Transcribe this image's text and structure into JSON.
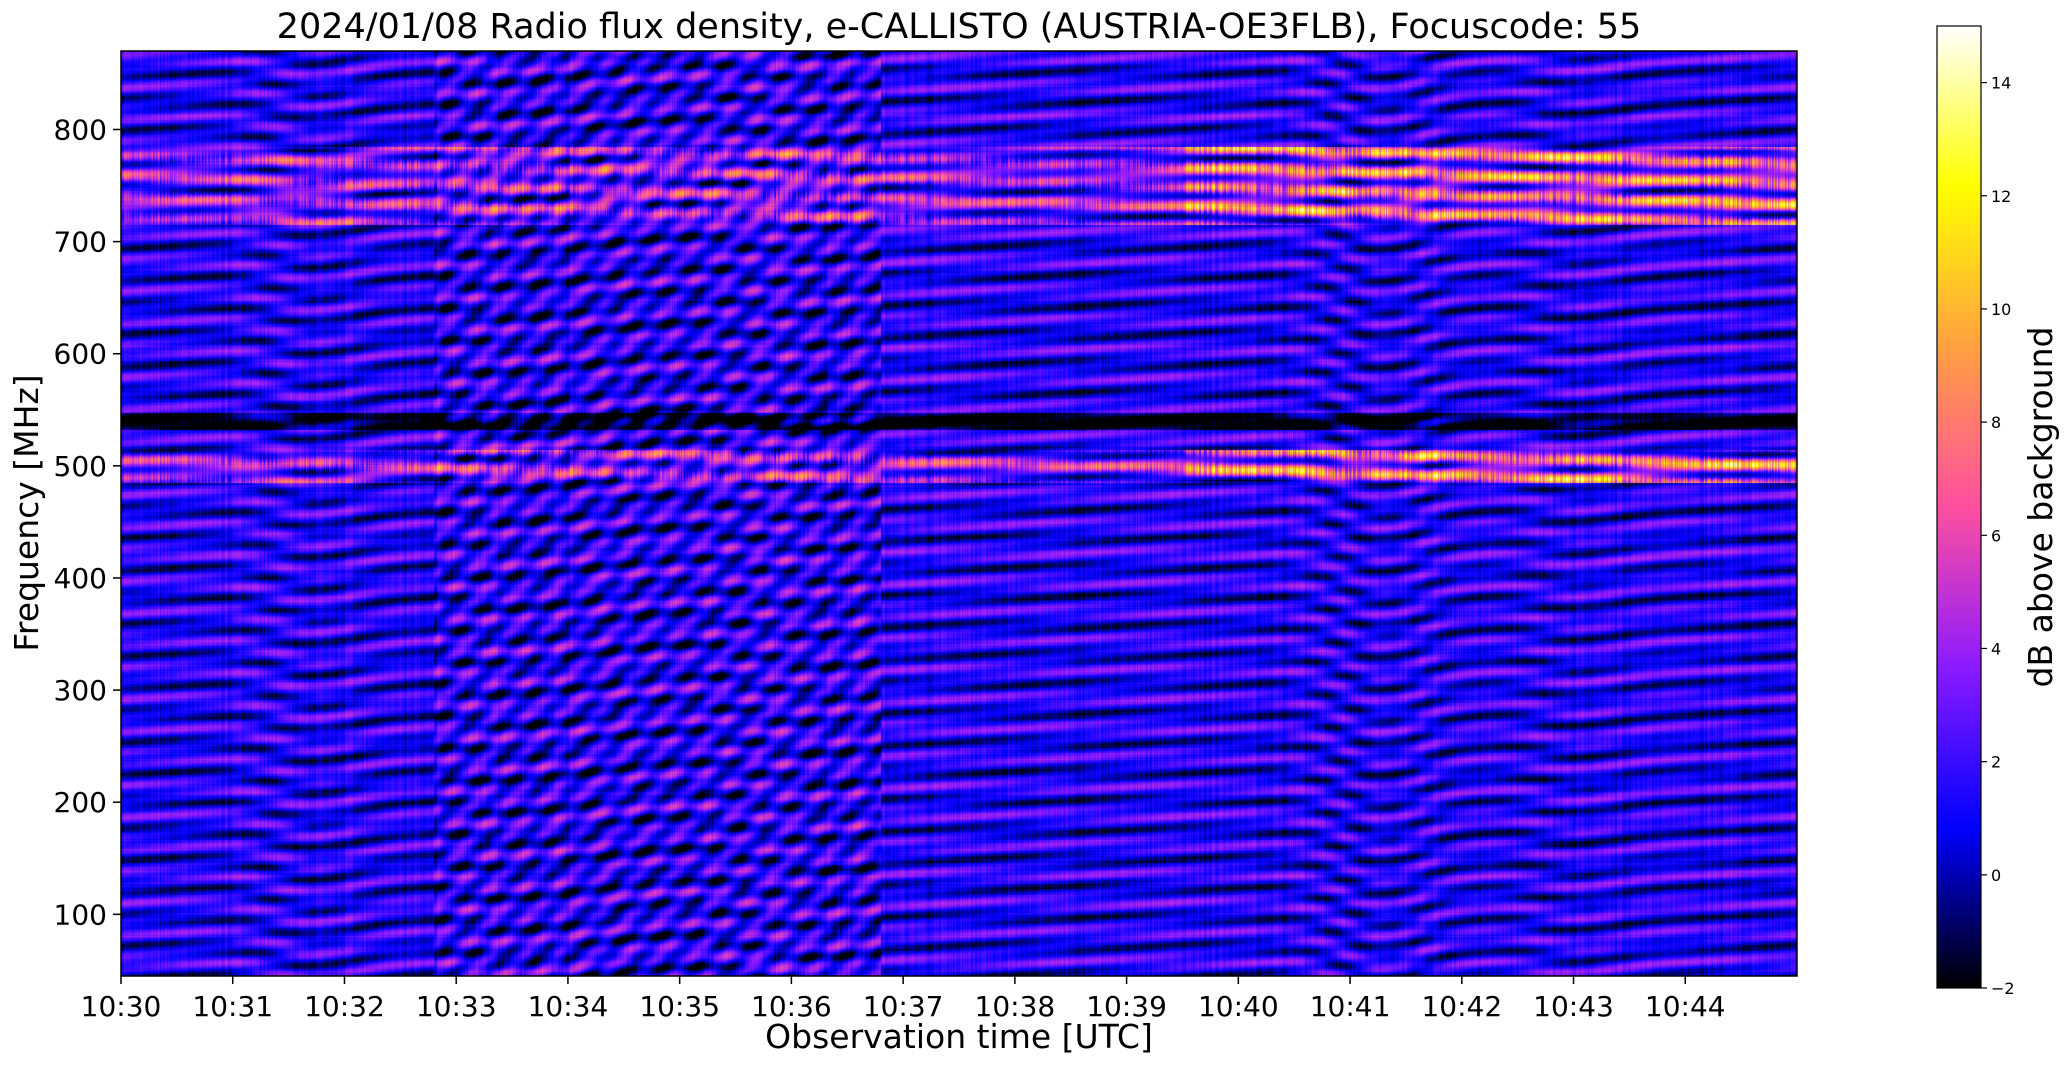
{
  "chart_data": {
    "type": "heatmap",
    "title": "2024/01/08  Radio flux density, e-CALLISTO (AUSTRIA-OE3FLB), Focuscode: 55",
    "xlabel": "Observation time [UTC]",
    "ylabel": "Frequency [MHz]",
    "x_ticks": [
      "10:30",
      "10:31",
      "10:32",
      "10:33",
      "10:34",
      "10:35",
      "10:36",
      "10:37",
      "10:38",
      "10:39",
      "10:40",
      "10:41",
      "10:42",
      "10:43",
      "10:44"
    ],
    "x_range_min": [
      0,
      15
    ],
    "y_ticks": [
      100,
      200,
      300,
      400,
      500,
      600,
      700,
      800
    ],
    "ylim": [
      45,
      870
    ],
    "colorbar": {
      "label": "dB above background",
      "ticks": [
        -2,
        0,
        2,
        4,
        6,
        8,
        10,
        12,
        14
      ],
      "range": [
        -2,
        15
      ],
      "colormap": [
        "#000000",
        "#0000ff",
        "#8c1aff",
        "#ff4fa0",
        "#ffa040",
        "#ffff00",
        "#ffffff"
      ]
    },
    "features": {
      "bright_bands_mhz": [
        {
          "center": 750,
          "halfwidth": 35
        },
        {
          "center": 500,
          "halfwidth": 15
        }
      ],
      "bright_band_strong_from_min": 9.5,
      "dark_gap_mhz": 540,
      "drift_dips": [
        {
          "t_min": 1.75,
          "depth_mhz": 18
        },
        {
          "t_min": 11.3,
          "depth_mhz": 30
        },
        {
          "t_min": 13.05,
          "depth_mhz": 12
        }
      ],
      "diagonal_streaks_window_min": [
        2.8,
        6.8
      ]
    }
  }
}
